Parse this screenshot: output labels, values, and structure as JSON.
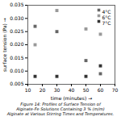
{
  "chart_data": {
    "type": "scatter",
    "xlabel": "time (minutes)",
    "ylabel": "surface tension (Pa)",
    "caption": "Figure 14: Profiles of Surface Tension of\nAlginate-Fe Solutions Containing 3 % (m/m)\nAlginate at Various Stirring Times and Temperatures.",
    "xlim": [
      10,
      70
    ],
    "ylim": [
      0.005,
      0.035
    ],
    "xticks": [
      10,
      20,
      30,
      40,
      50,
      60,
      70
    ],
    "yticks": [
      0.005,
      {
        "value": 0.01,
        "label": "0.010"
      },
      0.015,
      {
        "value": 0.02,
        "label": "0.020"
      },
      0.025,
      {
        "value": 0.03,
        "label": "0.030"
      },
      0.035
    ],
    "legend": "upper right",
    "grid": false,
    "marker": "square",
    "series": [
      {
        "name": "4°C",
        "color": "#666666",
        "x": [
          15,
          30,
          50,
          60
        ],
        "values": [
          0.027,
          0.025,
          0.014,
          0.009
        ]
      },
      {
        "name": "6°C",
        "color": "#999999",
        "x": [
          15,
          30,
          50,
          60
        ],
        "values": [
          0.02,
          0.033,
          0.026,
          0.024
        ]
      },
      {
        "name": "7°C",
        "color": "#333333",
        "x": [
          15,
          30,
          50,
          60
        ],
        "values": [
          0.008,
          0.008,
          0.008,
          0.012
        ]
      }
    ]
  }
}
